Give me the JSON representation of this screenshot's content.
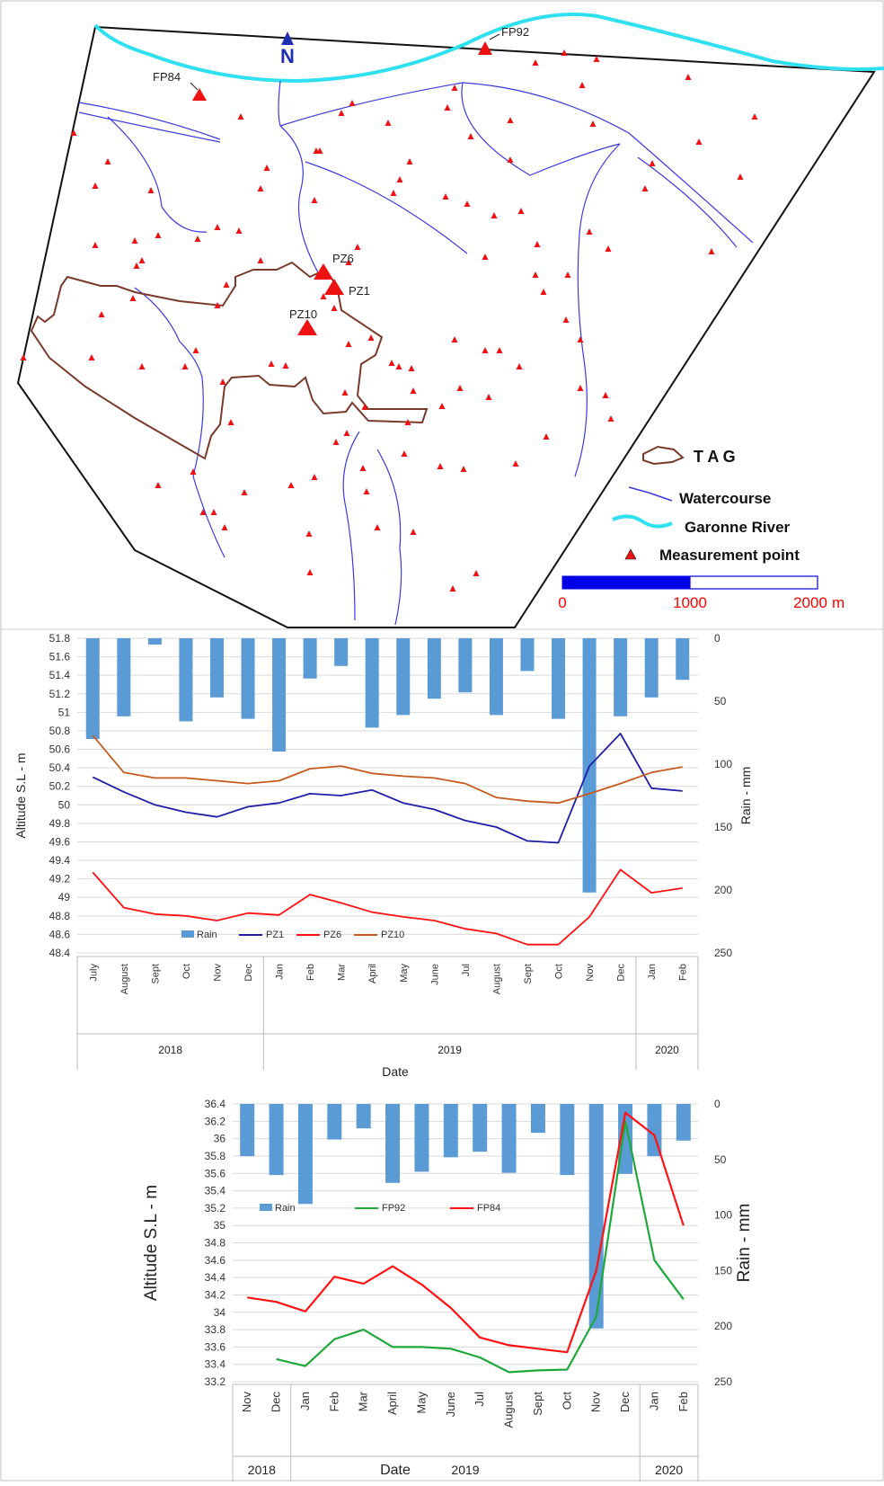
{
  "map": {
    "north_label": "N",
    "points": {
      "FP92": "FP92",
      "FP84": "FP84",
      "PZ6": "PZ6",
      "PZ1": "PZ1",
      "PZ10": "PZ10"
    },
    "legend": {
      "tag": "T A G",
      "watercourse": "Watercourse",
      "garonne": "Garonne River",
      "measurement": "Measurement point"
    },
    "scale": {
      "l0": "0",
      "l1": "1000",
      "l2": "2000",
      "unit": "m",
      "label_color": "#ff0000"
    },
    "colors": {
      "river": "#2fe0f0",
      "watercourse": "#3a3adf",
      "tag": "#7a3a2a",
      "point": "#ee1111",
      "scale_bar": "#0000e6"
    }
  },
  "chart_data": [
    {
      "type": "bar+line",
      "xlabel": "Date",
      "ylabel": "Altitude S.L - m",
      "y2label": "Rain - mm",
      "ylim": [
        48.4,
        51.8
      ],
      "yticks": [
        "48.4",
        "48.6",
        "48.8",
        "49",
        "49.2",
        "49.4",
        "49.6",
        "49.8",
        "50",
        "50.2",
        "50.4",
        "50.6",
        "50.8",
        "51",
        "51.2",
        "51.4",
        "51.6",
        "51.8"
      ],
      "y2lim": [
        0,
        250
      ],
      "y2inverted": true,
      "y2ticks": [
        "0",
        "50",
        "100",
        "150",
        "200",
        "250"
      ],
      "grid": true,
      "legend_position": "bottom-left",
      "categories": [
        "July",
        "August",
        "Sept",
        "Oct",
        "Nov",
        "Dec",
        "Jan",
        "Feb",
        "Mar",
        "April",
        "May",
        "June",
        "Jul",
        "August",
        "Sept",
        "Oct",
        "Nov",
        "Dec",
        "Jan",
        "Feb"
      ],
      "years": [
        {
          "label": "2018",
          "span": 6
        },
        {
          "label": "2019",
          "span": 12
        },
        {
          "label": "2020",
          "span": 2
        }
      ],
      "rain": {
        "name": "Rain",
        "color": "#5b9bd5",
        "values": [
          80,
          62,
          5,
          66,
          47,
          64,
          90,
          32,
          22,
          71,
          61,
          48,
          43,
          61,
          26,
          64,
          202,
          62,
          47,
          33
        ]
      },
      "series": [
        {
          "name": "PZ1",
          "color": "#1f1fa8",
          "values": [
            50.3,
            50.14,
            50.0,
            49.92,
            49.87,
            49.98,
            50.02,
            50.12,
            50.1,
            50.16,
            50.02,
            49.95,
            49.83,
            49.76,
            49.61,
            49.59,
            50.42,
            50.77,
            50.18,
            50.15
          ]
        },
        {
          "name": "PZ6",
          "color": "#ff1111",
          "values": [
            49.27,
            48.89,
            48.82,
            48.8,
            48.75,
            48.83,
            48.81,
            49.03,
            48.94,
            48.84,
            48.79,
            48.75,
            48.66,
            48.61,
            48.49,
            48.49,
            48.79,
            49.3,
            49.05,
            49.1
          ]
        },
        {
          "name": "PZ10",
          "color": "#c65a1e",
          "values": [
            50.75,
            50.35,
            50.29,
            50.29,
            50.26,
            50.23,
            50.26,
            50.39,
            50.42,
            50.34,
            50.31,
            50.29,
            50.23,
            50.08,
            50.04,
            50.02,
            50.12,
            50.23,
            50.35,
            50.41
          ]
        }
      ]
    },
    {
      "type": "bar+line",
      "xlabel": "Date",
      "ylabel": "Altitude S.L - m",
      "y2label": "Rain - mm",
      "ylim": [
        33.2,
        36.4
      ],
      "yticks": [
        "33.2",
        "33.4",
        "33.6",
        "33.8",
        "34",
        "34.2",
        "34.4",
        "34.6",
        "34.8",
        "35",
        "35.2",
        "35.4",
        "35.6",
        "35.8",
        "36",
        "36.2",
        "36.4"
      ],
      "y2lim": [
        0,
        250
      ],
      "y2inverted": true,
      "y2ticks": [
        "0",
        "50",
        "100",
        "150",
        "200",
        "250"
      ],
      "grid": true,
      "legend_position": "middle-left",
      "categories": [
        "Nov",
        "Dec",
        "Jan",
        "Feb",
        "Mar",
        "April",
        "May",
        "June",
        "Jul",
        "August",
        "Sept",
        "Oct",
        "Nov",
        "Dec",
        "Jan",
        "Feb"
      ],
      "years": [
        {
          "label": "2018",
          "span": 2
        },
        {
          "label": "2019",
          "span": 12
        },
        {
          "label": "2020",
          "span": 2
        }
      ],
      "rain": {
        "name": "Rain",
        "color": "#5b9bd5",
        "values": [
          47,
          64,
          90,
          32,
          22,
          71,
          61,
          48,
          43,
          62,
          26,
          64,
          202,
          63,
          47,
          33
        ]
      },
      "series": [
        {
          "name": "FP92",
          "color": "#1fa83a",
          "values": [
            null,
            33.46,
            33.38,
            33.69,
            33.8,
            33.6,
            33.6,
            33.58,
            33.48,
            33.31,
            33.33,
            33.34,
            33.95,
            36.2,
            34.6,
            34.15
          ]
        },
        {
          "name": "FP84",
          "color": "#ff1111",
          "values": [
            34.17,
            34.12,
            34.01,
            34.41,
            34.33,
            34.53,
            34.32,
            34.05,
            33.71,
            33.62,
            33.58,
            33.54,
            34.48,
            36.3,
            36.04,
            35.0
          ]
        }
      ]
    }
  ]
}
